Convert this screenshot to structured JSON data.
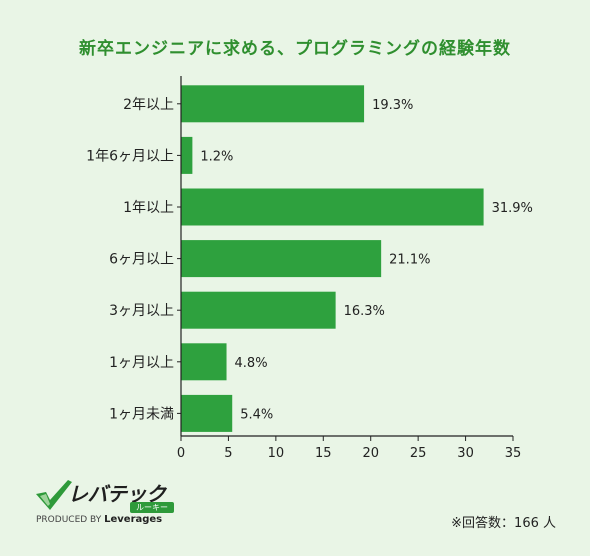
{
  "title": "新卒エンジニアに求める、プログラミングの経験年数",
  "chart_data": {
    "type": "bar",
    "orientation": "horizontal",
    "title": "新卒エンジニアに求める、プログラミングの経験年数",
    "categories": [
      "2年以上",
      "1年6ヶ月以上",
      "1年以上",
      "6ヶ月以上",
      "3ヶ月以上",
      "1ヶ月以上",
      "1ヶ月未満"
    ],
    "values": [
      19.3,
      1.2,
      31.9,
      21.1,
      16.3,
      4.8,
      5.4
    ],
    "value_labels": [
      "19.3%",
      "1.2%",
      "31.9%",
      "21.1%",
      "16.3%",
      "4.8%",
      "5.4%"
    ],
    "xlim": [
      0,
      35
    ],
    "xticks": [
      "0",
      "5",
      "10",
      "15",
      "20",
      "25",
      "30",
      "35"
    ],
    "xlabel": "",
    "ylabel": "",
    "bar_color": "#2ea13e",
    "grid": false
  },
  "logo": {
    "name": "レバテック",
    "sub": "ルーキー",
    "produced_by": "PRODUCED BY",
    "company": "Leverages",
    "check_color": "#2e9a3a"
  },
  "footnote": "※回答数：166 人"
}
